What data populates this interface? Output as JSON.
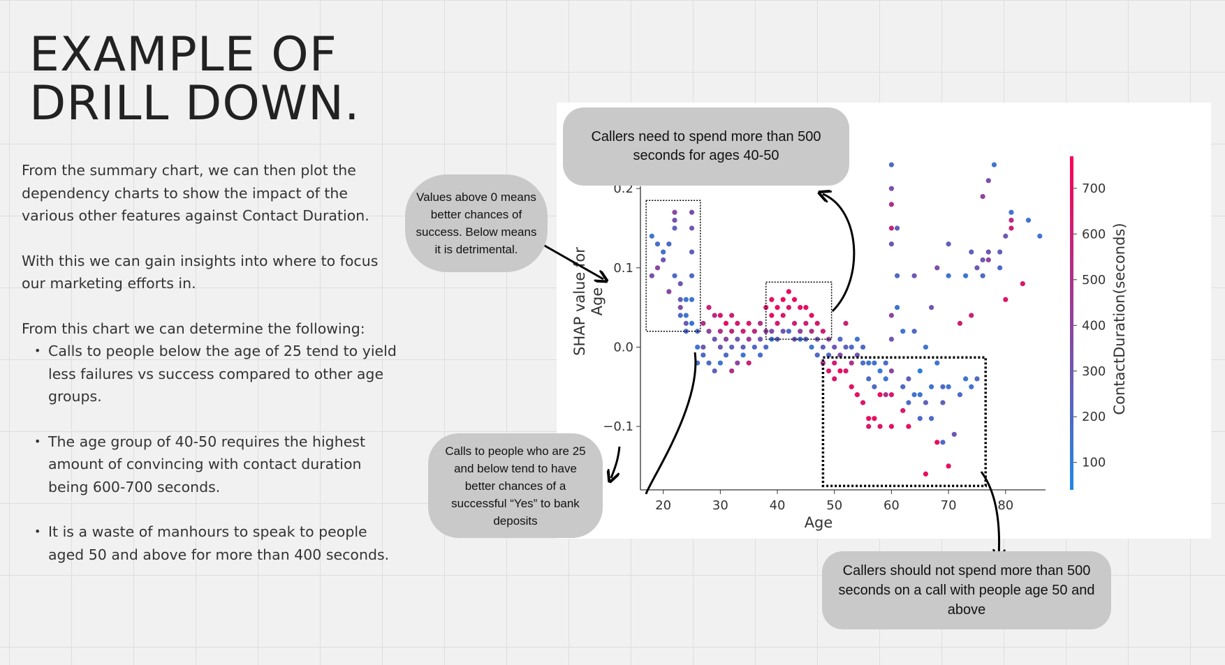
{
  "slide": {
    "title_line1": "EXAMPLE OF",
    "title_line2": "DRILL DOWN.",
    "paragraph1": "From the summary chart, we can then plot the dependency charts to show the impact of the various other features against Contact Duration.",
    "paragraph2": "With this we can gain insights into where to focus our marketing efforts in.",
    "paragraph3": "From this chart we can determine the following:",
    "bullets": [
      " Calls to people below the age of 25 tend to yield less failures vs success compared to other age groups.",
      "The age group of 40-50 requires the highest amount of convincing with contact duration being 600-700 seconds.",
      "It is a waste of manhours to speak to people aged 50 and above for more than 400 seconds."
    ]
  },
  "callouts": {
    "top": "Callers need to spend more than 500 seconds for ages 40-50",
    "left": "Values above 0 means better chances of success. Below means it is detrimental.",
    "bottom_left": "Calls to people who are 25 and below tend to have better chances of a successful “Yes” to bank deposits",
    "bottom_right": "Callers should not spend more than 500 seconds on a call with people age 50 and above"
  },
  "chart_data": {
    "type": "scatter",
    "title": "",
    "xlabel": "Age",
    "ylabel": "SHAP value for Age",
    "colorbar_label": "ContactDuration(seconds)",
    "xlim": [
      16,
      87
    ],
    "ylim": [
      -0.18,
      0.26
    ],
    "x_ticks": [
      20,
      30,
      40,
      50,
      60,
      70,
      80
    ],
    "y_ticks": [
      -0.1,
      0.0,
      0.1,
      0.2
    ],
    "y_tick_labels": [
      "−0.1",
      "0.0",
      "0.1",
      "0.2"
    ],
    "colorbar_ticks": [
      100,
      200,
      300,
      400,
      500,
      600,
      700
    ],
    "colorbar_range": [
      40,
      770
    ],
    "colors": {
      "low": "#1e88e5",
      "high": "#ff0052"
    },
    "points": [
      [
        18,
        0.14,
        150
      ],
      [
        18,
        0.09,
        350
      ],
      [
        19,
        0.13,
        180
      ],
      [
        19,
        0.1,
        400
      ],
      [
        20,
        0.12,
        160
      ],
      [
        20,
        0.11,
        300
      ],
      [
        21,
        0.13,
        200
      ],
      [
        21,
        0.07,
        380
      ],
      [
        22,
        0.15,
        250
      ],
      [
        22,
        0.17,
        380
      ],
      [
        22,
        0.16,
        320
      ],
      [
        22,
        0.09,
        200
      ],
      [
        23,
        0.08,
        300
      ],
      [
        23,
        0.06,
        250
      ],
      [
        23,
        0.05,
        350
      ],
      [
        23,
        0.04,
        200
      ],
      [
        24,
        0.06,
        150
      ],
      [
        24,
        0.04,
        150
      ],
      [
        24,
        0.03,
        280
      ],
      [
        24,
        0.02,
        200
      ],
      [
        25,
        0.17,
        350
      ],
      [
        25,
        0.15,
        300
      ],
      [
        25,
        0.12,
        250
      ],
      [
        25,
        0.09,
        200
      ],
      [
        25,
        0.06,
        150
      ],
      [
        25,
        0.03,
        120
      ],
      [
        26,
        0.02,
        200
      ],
      [
        26,
        0.0,
        150
      ],
      [
        26,
        -0.02,
        180
      ],
      [
        27,
        0.03,
        500
      ],
      [
        27,
        0.0,
        300
      ],
      [
        27,
        -0.01,
        200
      ],
      [
        28,
        0.05,
        600
      ],
      [
        28,
        0.02,
        400
      ],
      [
        28,
        -0.02,
        200
      ],
      [
        29,
        0.04,
        550
      ],
      [
        29,
        0.01,
        300
      ],
      [
        29,
        -0.03,
        250
      ],
      [
        30,
        0.04,
        650
      ],
      [
        30,
        0.02,
        500
      ],
      [
        30,
        0.0,
        300
      ],
      [
        30,
        -0.02,
        150
      ],
      [
        31,
        0.03,
        700
      ],
      [
        31,
        0.01,
        400
      ],
      [
        31,
        -0.01,
        200
      ],
      [
        32,
        0.04,
        600
      ],
      [
        32,
        0.02,
        550
      ],
      [
        32,
        0.0,
        250
      ],
      [
        32,
        -0.03,
        500
      ],
      [
        33,
        0.03,
        650
      ],
      [
        33,
        0.01,
        300
      ],
      [
        33,
        -0.02,
        400
      ],
      [
        34,
        0.02,
        600
      ],
      [
        34,
        0.0,
        250
      ],
      [
        34,
        -0.01,
        150
      ],
      [
        35,
        0.03,
        650
      ],
      [
        35,
        0.01,
        450
      ],
      [
        35,
        -0.02,
        600
      ],
      [
        36,
        0.02,
        550
      ],
      [
        36,
        0.0,
        200
      ],
      [
        37,
        0.03,
        500
      ],
      [
        37,
        0.01,
        300
      ],
      [
        37,
        -0.01,
        180
      ],
      [
        38,
        0.05,
        650
      ],
      [
        38,
        0.02,
        400
      ],
      [
        38,
        0.0,
        200
      ],
      [
        39,
        0.04,
        700
      ],
      [
        39,
        0.06,
        700
      ],
      [
        39,
        0.02,
        350
      ],
      [
        39,
        0.01,
        150
      ],
      [
        40,
        0.05,
        700
      ],
      [
        40,
        0.03,
        650
      ],
      [
        40,
        0.01,
        250
      ],
      [
        41,
        0.06,
        720
      ],
      [
        41,
        0.04,
        650
      ],
      [
        41,
        0.02,
        300
      ],
      [
        42,
        0.07,
        700
      ],
      [
        42,
        0.05,
        650
      ],
      [
        42,
        0.02,
        200
      ],
      [
        43,
        0.06,
        700
      ],
      [
        43,
        0.03,
        600
      ],
      [
        43,
        0.01,
        300
      ],
      [
        44,
        0.05,
        680
      ],
      [
        44,
        0.02,
        400
      ],
      [
        44,
        0.01,
        150
      ],
      [
        45,
        0.05,
        700
      ],
      [
        45,
        0.03,
        600
      ],
      [
        45,
        0.01,
        250
      ],
      [
        46,
        0.04,
        700
      ],
      [
        46,
        0.02,
        500
      ],
      [
        46,
        0.0,
        150
      ],
      [
        47,
        0.03,
        650
      ],
      [
        47,
        0.01,
        300
      ],
      [
        47,
        -0.01,
        200
      ],
      [
        48,
        0.02,
        600
      ],
      [
        48,
        0.0,
        250
      ],
      [
        48,
        -0.02,
        500
      ],
      [
        49,
        0.01,
        400
      ],
      [
        49,
        -0.01,
        200
      ],
      [
        49,
        -0.03,
        650
      ],
      [
        50,
        0.0,
        300
      ],
      [
        50,
        -0.02,
        600
      ],
      [
        50,
        -0.04,
        650
      ],
      [
        51,
        0.01,
        200
      ],
      [
        51,
        -0.01,
        350
      ],
      [
        51,
        -0.03,
        700
      ],
      [
        52,
        0.03,
        600
      ],
      [
        52,
        0.0,
        250
      ],
      [
        52,
        -0.03,
        650
      ],
      [
        53,
        0.0,
        200
      ],
      [
        53,
        -0.02,
        500
      ],
      [
        53,
        -0.05,
        700
      ],
      [
        54,
        0.01,
        150
      ],
      [
        54,
        -0.01,
        300
      ],
      [
        54,
        -0.06,
        700
      ],
      [
        55,
        0.0,
        200
      ],
      [
        55,
        -0.02,
        180
      ],
      [
        55,
        -0.07,
        650
      ],
      [
        56,
        -0.02,
        150
      ],
      [
        56,
        -0.04,
        200
      ],
      [
        56,
        -0.09,
        700
      ],
      [
        56,
        -0.1,
        650
      ],
      [
        57,
        -0.02,
        150
      ],
      [
        57,
        -0.05,
        200
      ],
      [
        57,
        -0.09,
        700
      ],
      [
        58,
        -0.03,
        120
      ],
      [
        58,
        -0.06,
        700
      ],
      [
        58,
        -0.1,
        650
      ],
      [
        59,
        -0.02,
        200
      ],
      [
        59,
        -0.04,
        150
      ],
      [
        59,
        -0.06,
        500
      ],
      [
        60,
        0.23,
        200
      ],
      [
        60,
        0.2,
        350
      ],
      [
        60,
        0.18,
        500
      ],
      [
        60,
        0.15,
        550
      ],
      [
        60,
        0.13,
        300
      ],
      [
        60,
        0.04,
        400
      ],
      [
        60,
        0.01,
        300
      ],
      [
        60,
        -0.03,
        400
      ],
      [
        60,
        -0.06,
        650
      ],
      [
        60,
        -0.1,
        700
      ],
      [
        61,
        0.15,
        250
      ],
      [
        61,
        0.09,
        200
      ],
      [
        61,
        0.05,
        150
      ],
      [
        62,
        0.02,
        150
      ],
      [
        62,
        -0.05,
        200
      ],
      [
        62,
        -0.08,
        650
      ],
      [
        63,
        -0.04,
        250
      ],
      [
        63,
        -0.07,
        200
      ],
      [
        63,
        -0.1,
        700
      ],
      [
        64,
        0.09,
        300
      ],
      [
        64,
        0.02,
        200
      ],
      [
        64,
        -0.06,
        150
      ],
      [
        65,
        -0.03,
        100
      ],
      [
        65,
        -0.06,
        150
      ],
      [
        65,
        -0.09,
        200
      ],
      [
        66,
        0.0,
        150
      ],
      [
        66,
        -0.07,
        250
      ],
      [
        66,
        -0.16,
        700
      ],
      [
        67,
        0.05,
        300
      ],
      [
        67,
        -0.05,
        150
      ],
      [
        67,
        -0.09,
        200
      ],
      [
        68,
        0.1,
        350
      ],
      [
        68,
        -0.02,
        150
      ],
      [
        68,
        -0.12,
        700
      ],
      [
        69,
        -0.05,
        200
      ],
      [
        69,
        -0.07,
        250
      ],
      [
        69,
        -0.12,
        200
      ],
      [
        70,
        0.13,
        250
      ],
      [
        70,
        0.09,
        150
      ],
      [
        70,
        -0.05,
        150
      ],
      [
        70,
        -0.15,
        700
      ],
      [
        71,
        -0.11,
        300
      ],
      [
        72,
        0.03,
        600
      ],
      [
        72,
        -0.06,
        200
      ],
      [
        73,
        0.09,
        150
      ],
      [
        73,
        -0.04,
        150
      ],
      [
        74,
        0.04,
        600
      ],
      [
        74,
        0.12,
        250
      ],
      [
        74,
        -0.05,
        150
      ],
      [
        75,
        0.1,
        300
      ],
      [
        75,
        -0.04,
        200
      ],
      [
        76,
        0.11,
        300
      ],
      [
        76,
        0.19,
        400
      ],
      [
        76,
        0.09,
        200
      ],
      [
        77,
        0.21,
        350
      ],
      [
        77,
        0.11,
        400
      ],
      [
        77,
        0.12,
        300
      ],
      [
        78,
        0.23,
        150
      ],
      [
        79,
        0.12,
        250
      ],
      [
        79,
        0.1,
        200
      ],
      [
        80,
        0.14,
        300
      ],
      [
        80,
        0.06,
        650
      ],
      [
        81,
        0.17,
        150
      ],
      [
        81,
        0.16,
        550
      ],
      [
        81,
        0.15,
        600
      ],
      [
        83,
        0.08,
        650
      ],
      [
        84,
        0.16,
        150
      ],
      [
        86,
        0.14,
        150
      ]
    ],
    "highlight_boxes": [
      {
        "x": [
          17,
          26.5
        ],
        "y": [
          0.02,
          0.185
        ],
        "style": "dotted"
      },
      {
        "x": [
          38,
          49.5
        ],
        "y": [
          0.01,
          0.082
        ],
        "style": "dotted"
      },
      {
        "x": [
          48,
          76.5
        ],
        "y": [
          -0.175,
          -0.013
        ],
        "style": "dotted-bold"
      }
    ]
  }
}
